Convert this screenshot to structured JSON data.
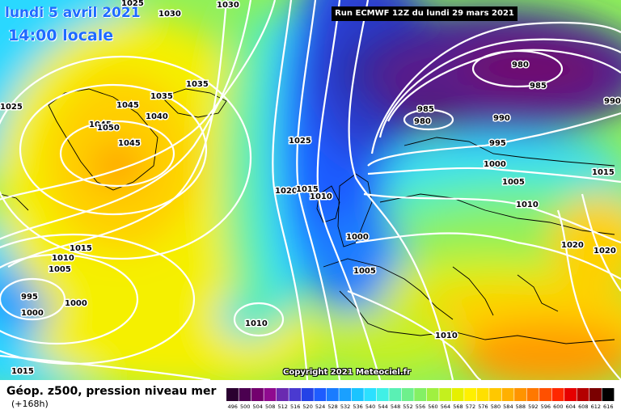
{
  "header": {
    "valid_date": "lundi 5 avril 2021",
    "local_time": "14:00 locale",
    "run_info": "Run ECMWF 12Z du lundi 29 mars 2021",
    "copyright": "Copyright 2021 Meteociel.fr"
  },
  "footer": {
    "product_title": "Géop. z500, pression niveau mer",
    "lead_time": "(+168h)"
  },
  "legend": {
    "values": [
      "496",
      "500",
      "504",
      "508",
      "512",
      "516",
      "520",
      "524",
      "528",
      "532",
      "536",
      "540",
      "544",
      "548",
      "552",
      "556",
      "560",
      "564",
      "568",
      "572",
      "576",
      "580",
      "584",
      "588",
      "592",
      "596",
      "600",
      "604",
      "608",
      "612",
      "616"
    ],
    "colors": [
      "#2a0030",
      "#4b0050",
      "#73006e",
      "#8f0a8f",
      "#6a2ab0",
      "#4a3ad0",
      "#2442e6",
      "#1e5cff",
      "#1a7cff",
      "#1aa0ff",
      "#1ac4ff",
      "#2ce0ff",
      "#40f0e6",
      "#5af0b4",
      "#6ef08c",
      "#84f064",
      "#a0f040",
      "#c4f01e",
      "#e6f000",
      "#fff000",
      "#ffe000",
      "#ffc800",
      "#ffb000",
      "#ff9400",
      "#ff7800",
      "#ff5000",
      "#ff2800",
      "#e60000",
      "#b40000",
      "#7a0000",
      "#000000"
    ]
  },
  "isobar_labels": [
    {
      "text": "1025"
    },
    {
      "text": "1030"
    },
    {
      "text": "1030"
    },
    {
      "text": "1035"
    },
    {
      "text": "1035"
    },
    {
      "text": "1045"
    },
    {
      "text": "1045"
    },
    {
      "text": "1050"
    },
    {
      "text": "1045"
    },
    {
      "text": "1040"
    },
    {
      "text": "1025"
    },
    {
      "text": "1025"
    },
    {
      "text": "1020"
    },
    {
      "text": "1015"
    },
    {
      "text": "1010"
    },
    {
      "text": "980"
    },
    {
      "text": "985"
    },
    {
      "text": "985"
    },
    {
      "text": "980"
    },
    {
      "text": "990"
    },
    {
      "text": "990"
    },
    {
      "text": "995"
    },
    {
      "text": "1000"
    },
    {
      "text": "1005"
    },
    {
      "text": "1010"
    },
    {
      "text": "1015"
    },
    {
      "text": "1020"
    },
    {
      "text": "1020"
    },
    {
      "text": "1000"
    },
    {
      "text": "1005"
    },
    {
      "text": "1010"
    },
    {
      "text": "1015"
    },
    {
      "text": "1010"
    },
    {
      "text": "1005"
    },
    {
      "text": "995"
    },
    {
      "text": "1000"
    },
    {
      "text": "1000"
    },
    {
      "text": "1010"
    },
    {
      "text": "1015"
    }
  ]
}
